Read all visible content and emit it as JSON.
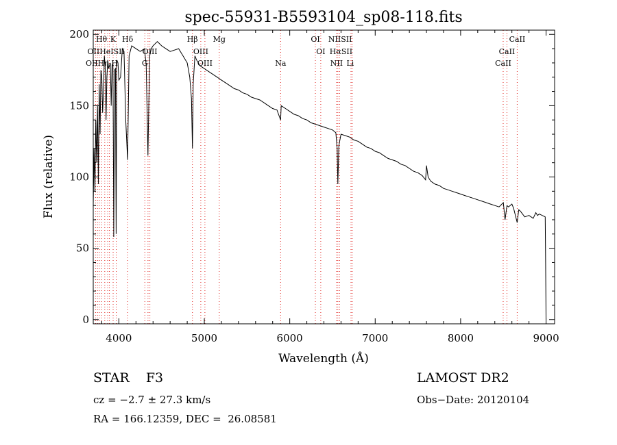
{
  "chart_data": {
    "type": "line",
    "title": "spec-55931-B5593104_sp08-118.fits",
    "xlabel": "Wavelength (Å)",
    "ylabel": "Flux (relative)",
    "xlim": [
      3700,
      9100
    ],
    "ylim": [
      -3,
      203
    ],
    "x_ticks": [
      4000,
      5000,
      6000,
      7000,
      8000,
      9000
    ],
    "y_ticks": [
      0,
      50,
      100,
      150,
      200
    ],
    "grid": false,
    "series": [
      {
        "x": [
          3700,
          3710,
          3720,
          3730,
          3740,
          3750,
          3760,
          3770,
          3780,
          3790,
          3800,
          3810,
          3820,
          3830,
          3840,
          3850,
          3860,
          3870,
          3880,
          3890,
          3900,
          3910,
          3920,
          3930,
          3935,
          3940,
          3950,
          3960,
          3968,
          3975,
          3990,
          4000,
          4020,
          4040,
          4060,
          4080,
          4102,
          4120,
          4150,
          4200,
          4250,
          4300,
          4320,
          4340,
          4360,
          4380,
          4400,
          4450,
          4500,
          4550,
          4600,
          4650,
          4700,
          4750,
          4800,
          4830,
          4850,
          4861,
          4870,
          4890,
          4910,
          4950,
          5000,
          5050,
          5100,
          5150,
          5200,
          5250,
          5300,
          5350,
          5400,
          5450,
          5500,
          5550,
          5600,
          5650,
          5700,
          5750,
          5800,
          5850,
          5893,
          5900,
          5950,
          6000,
          6050,
          6100,
          6150,
          6200,
          6250,
          6300,
          6350,
          6400,
          6450,
          6500,
          6540,
          6555,
          6563,
          6575,
          6600,
          6650,
          6700,
          6750,
          6800,
          6850,
          6900,
          6950,
          7000,
          7050,
          7100,
          7150,
          7200,
          7250,
          7300,
          7350,
          7400,
          7450,
          7500,
          7550,
          7590,
          7600,
          7620,
          7650,
          7700,
          7750,
          7800,
          7850,
          7900,
          7950,
          8000,
          8050,
          8100,
          8150,
          8200,
          8250,
          8300,
          8350,
          8400,
          8450,
          8500,
          8520,
          8542,
          8560,
          8600,
          8620,
          8662,
          8680,
          8700,
          8750,
          8800,
          8850,
          8880,
          8900,
          8920,
          8990,
          8995,
          9000
        ],
        "values": [
          80,
          120,
          90,
          140,
          110,
          150,
          95,
          165,
          130,
          175,
          170,
          145,
          160,
          185,
          178,
          140,
          170,
          182,
          176,
          178,
          180,
          150,
          178,
          180,
          130,
          58,
          175,
          176,
          60,
          182,
          180,
          168,
          170,
          190,
          188,
          140,
          112,
          185,
          192,
          190,
          188,
          190,
          178,
          115,
          185,
          190,
          192,
          195,
          192,
          190,
          188,
          189,
          190,
          185,
          180,
          170,
          155,
          120,
          165,
          185,
          182,
          178,
          176,
          174,
          172,
          170,
          168,
          166,
          164,
          162,
          161,
          159,
          158,
          156,
          155,
          154,
          152,
          150,
          148,
          147,
          140,
          150,
          148,
          146,
          144,
          143,
          141,
          140,
          138,
          137,
          136,
          135,
          134,
          133,
          131,
          120,
          95,
          122,
          130,
          129,
          128,
          126,
          125,
          123,
          121,
          120,
          118,
          117,
          115,
          113,
          112,
          111,
          109,
          108,
          106,
          104,
          103,
          101,
          98,
          108,
          100,
          97,
          95,
          94,
          92,
          91,
          90,
          89,
          88,
          87,
          86,
          85,
          84,
          83,
          82,
          81,
          80,
          79,
          82,
          70,
          80,
          79,
          81,
          78,
          68,
          77,
          76,
          72,
          73,
          71,
          75,
          73,
          74,
          72,
          40,
          0
        ]
      }
    ],
    "line_marks": [
      {
        "label": "Hθ",
        "x": 3797,
        "row": 0
      },
      {
        "label": "K",
        "x": 3933,
        "row": 0
      },
      {
        "label": "Hδ",
        "x": 4102,
        "row": 0
      },
      {
        "label": "Hβ",
        "x": 4861,
        "row": 0
      },
      {
        "label": "Mg",
        "x": 5175,
        "row": 0
      },
      {
        "label": "OI",
        "x": 6300,
        "row": 0
      },
      {
        "label": "NIISII",
        "x": 6590,
        "row": 0
      },
      {
        "label": "CaII",
        "x": 8662,
        "row": 0
      },
      {
        "label": "OIIHeISII",
        "x": 3850,
        "row": 1
      },
      {
        "label": "OIII",
        "x": 4363,
        "row": 1
      },
      {
        "label": "OIII",
        "x": 4959,
        "row": 1
      },
      {
        "label": "OI",
        "x": 6363,
        "row": 1
      },
      {
        "label": "HαSII",
        "x": 6600,
        "row": 1
      },
      {
        "label": "CaII",
        "x": 8542,
        "row": 1
      },
      {
        "label": "OIIHη H",
        "x": 3800,
        "row": 2
      },
      {
        "label": "G",
        "x": 4304,
        "row": 2
      },
      {
        "label": "OIII",
        "x": 5007,
        "row": 2
      },
      {
        "label": "Na",
        "x": 5893,
        "row": 2
      },
      {
        "label": "NII",
        "x": 6548,
        "row": 2
      },
      {
        "label": "Li",
        "x": 6708,
        "row": 2
      },
      {
        "label": "CaII",
        "x": 8498,
        "row": 2
      }
    ],
    "line_positions": [
      3727,
      3750,
      3771,
      3798,
      3835,
      3869,
      3889,
      3933,
      3969,
      4102,
      4304,
      4341,
      4363,
      4861,
      4959,
      5007,
      5175,
      5893,
      6300,
      6363,
      6548,
      6563,
      6583,
      6717,
      6731,
      8498,
      8542,
      8662
    ]
  },
  "info": {
    "object": "STAR    F3",
    "survey": "LAMOST DR2",
    "cz": "cz = −2.7 ± 27.3 km/s",
    "obs_date": "Obs−Date: 20120104",
    "coords": "RA = 166.12359, DEC =  26.08581"
  }
}
